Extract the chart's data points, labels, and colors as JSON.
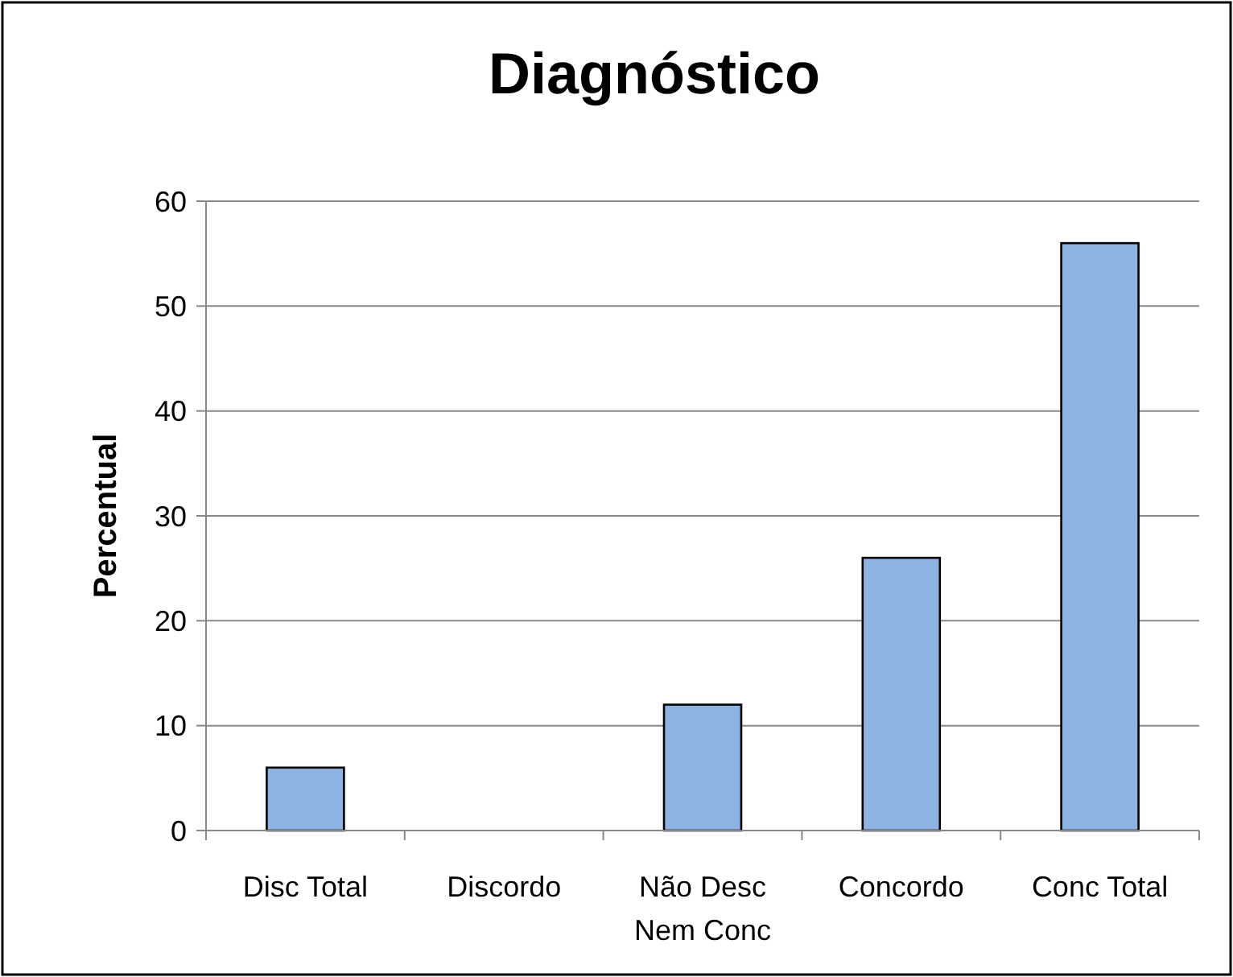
{
  "chart_data": {
    "type": "bar",
    "title": "Diagnóstico",
    "ylabel": "Percentual",
    "categories": [
      "Disc Total",
      "Discordo",
      "Não Desc Nem Conc",
      "Concordo",
      "Conc Total"
    ],
    "values": [
      6,
      0,
      12,
      26,
      56
    ],
    "color": "#8db3e2",
    "ylim": [
      0,
      60
    ],
    "yticks": [
      0,
      10,
      20,
      30,
      40,
      50,
      60
    ],
    "grid": "y"
  }
}
